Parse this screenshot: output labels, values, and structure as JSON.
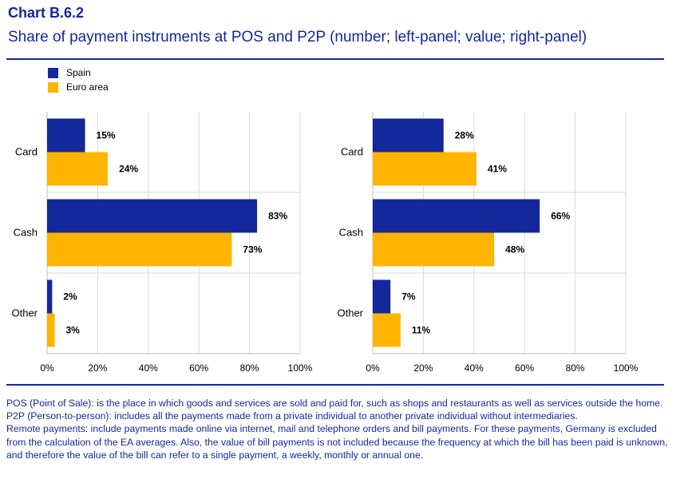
{
  "header": {
    "label": "Chart B.6.2",
    "title": "Share of payment instruments at POS and P2P (number; left-panel; value; right-panel)"
  },
  "colors": {
    "spain": "#13289A",
    "euro_area": "#FFB400",
    "grid": "#D9D9D9",
    "text_blue": "#13289A"
  },
  "legend": [
    {
      "name": "Spain",
      "color": "#13289A"
    },
    {
      "name": "Euro area",
      "color": "#FFB400"
    }
  ],
  "chart_data": [
    {
      "type": "bar",
      "orientation": "horizontal",
      "categories": [
        "Card",
        "Cash",
        "Other"
      ],
      "series": [
        {
          "name": "Spain",
          "values": [
            15,
            83,
            2
          ]
        },
        {
          "name": "Euro area",
          "values": [
            24,
            73,
            3
          ]
        }
      ],
      "data_labels": [
        [
          "15%",
          "83%",
          "2%"
        ],
        [
          "24%",
          "73%",
          "3%"
        ]
      ],
      "xticks": [
        "0%",
        "20%",
        "40%",
        "60%",
        "80%",
        "100%"
      ],
      "xlim": [
        0,
        100
      ],
      "grid": true,
      "legend_position": "top-left"
    },
    {
      "type": "bar",
      "orientation": "horizontal",
      "categories": [
        "Card",
        "Cash",
        "Other"
      ],
      "series": [
        {
          "name": "Spain",
          "values": [
            28,
            66,
            7
          ]
        },
        {
          "name": "Euro area",
          "values": [
            41,
            48,
            11
          ]
        }
      ],
      "data_labels": [
        [
          "28%",
          "66%",
          "7%"
        ],
        [
          "41%",
          "48%",
          "11%"
        ]
      ],
      "xticks": [
        "0%",
        "20%",
        "40%",
        "60%",
        "80%",
        "100%"
      ],
      "xlim": [
        0,
        100
      ],
      "grid": true
    }
  ],
  "notes": [
    "POS (Point of Sale): is the place in which goods and services are sold and paid for, such as shops and restaurants as well as services outside the home.",
    "P2P (Person-to-person): includes all the payments made from a private individual to another private individual without intermediaries.",
    "Remote payments: include payments made online via internet, mail and telephone orders and bill payments. For these payments, Germany is excluded from the calculation of the EA averages. Also, the value of bill payments is not included because the frequency at which the bill has been paid is unknown, and therefore the value of the bill can refer to a single payment, a weekly, monthly or annual one."
  ]
}
